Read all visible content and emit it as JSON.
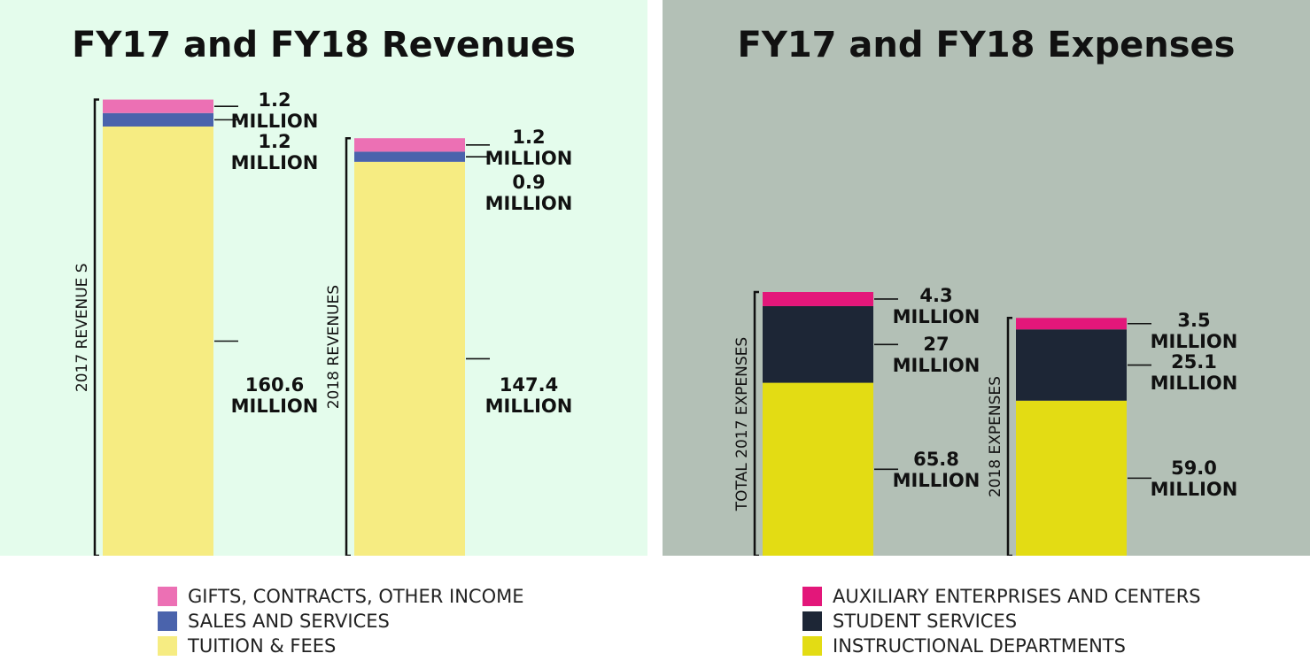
{
  "colors": {
    "revenue_bg": "#e4fcec",
    "expense_bg": "#b3c0b6",
    "gifts": "#ec70b4",
    "sales": "#4a63ac",
    "tuition": "#f6ec82",
    "auxiliary": "#e3177a",
    "student_services": "#1d2636",
    "instructional": "#e3dc14"
  },
  "chart_data": [
    {
      "type": "bar",
      "stacked": true,
      "title": "FY17 and FY18 Revenues",
      "categories": [
        "2017 REVENUE S",
        "2018 REVENUES"
      ],
      "unit": "MILLION",
      "series": [
        {
          "name": "TUITION & FEES",
          "values": [
            160.6,
            147.4
          ],
          "color": "#f6ec82"
        },
        {
          "name": "SALES AND SERVICES",
          "values": [
            1.2,
            0.9
          ],
          "color": "#4a63ac"
        },
        {
          "name": "GIFTS, CONTRACTS, OTHER INCOME",
          "values": [
            1.2,
            1.2
          ],
          "color": "#ec70b4"
        }
      ],
      "value_labels": [
        {
          "bar": 0,
          "series": 2,
          "number": "1.2",
          "unit": "MILLION"
        },
        {
          "bar": 0,
          "series": 1,
          "number": "1.2",
          "unit": "MILLION"
        },
        {
          "bar": 0,
          "series": 0,
          "number": "160.6",
          "unit": "MILLION"
        },
        {
          "bar": 1,
          "series": 2,
          "number": "1.2",
          "unit": "MILLION"
        },
        {
          "bar": 1,
          "series": 1,
          "number": "0.9",
          "unit": "MILLION"
        },
        {
          "bar": 1,
          "series": 0,
          "number": "147.4",
          "unit": "MILLION"
        }
      ],
      "grid": false,
      "legend": "bottom"
    },
    {
      "type": "bar",
      "stacked": true,
      "title": "FY17 and FY18 Expenses",
      "categories": [
        "TOTAL 2017 EXPENSES",
        "2018 EXPENSES"
      ],
      "unit": "MILLION",
      "series": [
        {
          "name": "INSTRUCTIONAL DEPARTMENTS",
          "values": [
            65.8,
            59.0
          ],
          "color": "#e3dc14"
        },
        {
          "name": "STUDENT SERVICES",
          "values": [
            27,
            25.1
          ],
          "color": "#1d2636"
        },
        {
          "name": "AUXILIARY ENTERPRISES AND CENTERS",
          "values": [
            4.3,
            3.5
          ],
          "color": "#e3177a"
        }
      ],
      "value_labels": [
        {
          "bar": 0,
          "series": 2,
          "number": "4.3",
          "unit": "MILLION"
        },
        {
          "bar": 0,
          "series": 1,
          "number": "27",
          "unit": "MILLION"
        },
        {
          "bar": 0,
          "series": 0,
          "number": "65.8",
          "unit": "MILLION"
        },
        {
          "bar": 1,
          "series": 2,
          "number": "3.5",
          "unit": "MILLION"
        },
        {
          "bar": 1,
          "series": 1,
          "number": "25.1",
          "unit": "MILLION"
        },
        {
          "bar": 1,
          "series": 0,
          "number": "59.0",
          "unit": "MILLION"
        }
      ],
      "grid": false,
      "legend": "bottom"
    }
  ],
  "legends": {
    "revenues": [
      {
        "label": "GIFTS, CONTRACTS, OTHER INCOME",
        "color": "#ec70b4"
      },
      {
        "label": "SALES AND SERVICES",
        "color": "#4a63ac"
      },
      {
        "label": "TUITION & FEES",
        "color": "#f6ec82"
      }
    ],
    "expenses": [
      {
        "label": "AUXILIARY ENTERPRISES AND CENTERS",
        "color": "#e3177a"
      },
      {
        "label": "STUDENT SERVICES",
        "color": "#1d2636"
      },
      {
        "label": "INSTRUCTIONAL DEPARTMENTS",
        "color": "#e3dc14"
      }
    ]
  }
}
